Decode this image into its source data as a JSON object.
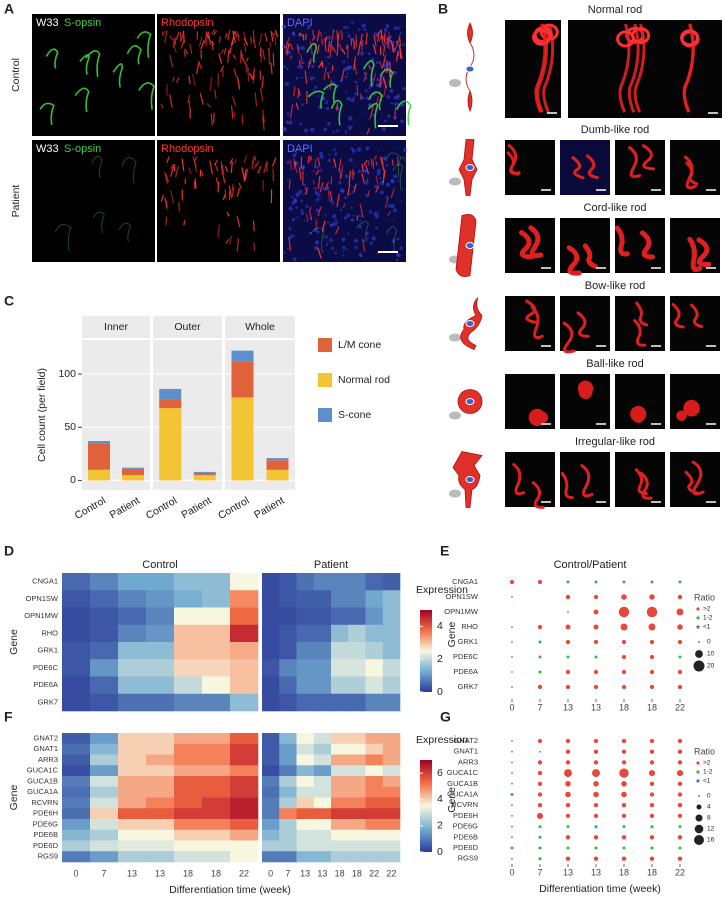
{
  "figure": {
    "panel_letters": [
      "A",
      "B",
      "C",
      "D",
      "E",
      "F",
      "G"
    ],
    "panel_a": {
      "rows": [
        "Control",
        "Patient"
      ],
      "stage": "W33",
      "channels": [
        "S-opsin",
        "Rhodopsin",
        "DAPI"
      ],
      "channel_colors": [
        "#3fd13f",
        "#ff3434",
        "#5b6bff"
      ]
    },
    "panel_b": {
      "types": [
        "Normal rod",
        "Dumb-like rod",
        "Cord-like rod",
        "Bow-like rod",
        "Ball-like rod",
        "Irregular-like rod"
      ]
    }
  },
  "chart_data": [
    {
      "type": "bar",
      "stacked": true,
      "facets": [
        "Inner",
        "Outer",
        "Whole"
      ],
      "categories": [
        "Control",
        "Patient",
        "Control",
        "Patient",
        "Control",
        "Patient"
      ],
      "ylabel": "Cell count (per field)",
      "ylim": [
        -9,
        132
      ],
      "yticks": [
        0,
        50,
        100
      ],
      "grid": true,
      "series": [
        {
          "name": "Normal rod",
          "color": "#f3c434",
          "values": [
            10,
            5,
            68,
            5,
            78,
            10
          ]
        },
        {
          "name": "L/M cone",
          "color": "#e0623a",
          "values": [
            25,
            6,
            8,
            2,
            34,
            9
          ]
        },
        {
          "name": "S-cone",
          "color": "#5d8fcc",
          "values": [
            2,
            1,
            10,
            1,
            10,
            2
          ]
        }
      ]
    },
    {
      "type": "heatmap",
      "ylabel": "Gene",
      "genes": [
        "CNGA1",
        "OPN1SW",
        "OPN1MW",
        "RHO",
        "GRK1",
        "PDE6C",
        "PDE6A",
        "GRK7"
      ],
      "colorbar_title": "Expression",
      "zlim": [
        0,
        5
      ],
      "zticks": [
        0,
        2,
        4
      ],
      "colors": [
        "#2b3a98",
        "#74add1",
        "#f7f7e0",
        "#f46d43",
        "#a50026"
      ],
      "panels": [
        {
          "title": "Control",
          "values": [
            [
              0.5,
              0.8,
              1.2,
              1.2,
              1.5,
              1.5,
              2.5
            ],
            [
              0.3,
              0.5,
              0.8,
              1,
              1.3,
              1.5,
              3.5
            ],
            [
              0.2,
              0.3,
              0.5,
              0.8,
              2.5,
              2.5,
              3.8
            ],
            [
              0.2,
              0.3,
              0.8,
              1,
              3,
              3,
              4.5
            ],
            [
              0.3,
              0.5,
              1.5,
              1.5,
              3,
              3,
              3.2
            ],
            [
              0.3,
              1,
              1.8,
              1.8,
              2.8,
              2.8,
              3
            ],
            [
              0.2,
              0.5,
              1.5,
              1.5,
              2,
              2.5,
              3
            ],
            [
              0.2,
              0.3,
              0.6,
              0.6,
              0.8,
              0.8,
              1.5
            ]
          ]
        },
        {
          "title": "Patient",
          "values": [
            [
              0.2,
              0.3,
              0.6,
              0.8,
              0.8,
              0.8,
              0.5,
              0.4
            ],
            [
              0.2,
              0.3,
              0.4,
              0.4,
              0.8,
              0.8,
              1.2,
              1.5
            ],
            [
              0.2,
              0.2,
              0.3,
              0.3,
              0.5,
              0.5,
              1,
              1.5
            ],
            [
              0.2,
              0.3,
              0.5,
              0.5,
              1.5,
              1.8,
              1.5,
              1.5
            ],
            [
              0.2,
              0.3,
              0.8,
              0.8,
              2,
              2,
              1.8,
              1.5
            ],
            [
              0.3,
              0.8,
              1,
              1,
              2.2,
              2.2,
              2.5,
              2
            ],
            [
              0.2,
              0.5,
              1,
              1,
              1.8,
              1.8,
              2.2,
              1.8
            ],
            [
              0.2,
              0.3,
              0.5,
              0.5,
              0.5,
              0.5,
              0.8,
              0.8
            ]
          ]
        }
      ]
    },
    {
      "type": "dotplot",
      "title": "Control/Patient",
      "ylabel": "Gene",
      "genes": [
        "CNGA1",
        "OPN1SW",
        "OPN1MW",
        "RHO",
        "GRK1",
        "PDE6C",
        "PDE6A",
        "GRK7"
      ],
      "x": [
        "0",
        "7",
        "13",
        "13",
        "18",
        "18",
        "22"
      ],
      "values": [
        [
          3,
          3,
          1.5,
          1.5,
          1.5,
          1.5,
          1.5
        ],
        [
          0.5,
          null,
          3,
          3,
          5,
          5,
          3
        ],
        [
          null,
          null,
          0.5,
          4,
          18,
          18,
          8
        ],
        [
          0.5,
          3,
          4,
          4,
          8,
          8,
          5
        ],
        [
          0.5,
          1.5,
          3,
          3,
          3,
          3,
          3
        ],
        [
          0.5,
          1.5,
          1.5,
          1.5,
          3,
          3,
          1.5
        ],
        [
          0.5,
          1.5,
          3,
          3,
          3,
          3,
          3
        ],
        [
          0.5,
          3,
          3,
          3,
          3,
          3,
          3
        ]
      ],
      "legend_title": "Ratio",
      "ratio_classes": [
        {
          "label": ">2",
          "min": 2,
          "color": "#e8483b"
        },
        {
          "label": "1-2",
          "min": 1,
          "color": "#3cb44b"
        },
        {
          "label": "<1",
          "min": 0,
          "color": "#4c6fd8"
        }
      ],
      "size_ticks": [
        0,
        10,
        20
      ]
    },
    {
      "type": "heatmap",
      "ylabel": "Gene",
      "xlabel": "Differentiation time (week)",
      "genes": [
        "GNAT2",
        "GNAT1",
        "ARR3",
        "GUCA1C",
        "GUCA1B",
        "GUCA1A",
        "RCVRN",
        "PDE6H",
        "PDE6G",
        "PDE6B",
        "PDE6D",
        "RGS9"
      ],
      "colorbar_title": "Expression",
      "zlim": [
        0,
        7
      ],
      "zticks": [
        0,
        2,
        4,
        6
      ],
      "colors": [
        "#2b3a98",
        "#74add1",
        "#f7f7e0",
        "#f46d43",
        "#a50026"
      ],
      "panels": [
        {
          "x": [
            "0",
            "7",
            "13",
            "13",
            "18",
            "18",
            "22"
          ],
          "values": [
            [
              0.5,
              1.5,
              4,
              4,
              4.5,
              4.5,
              5.5
            ],
            [
              0.8,
              2,
              4,
              4,
              5,
              5,
              6
            ],
            [
              0.5,
              2.5,
              4,
              4.5,
              5,
              5,
              6
            ],
            [
              0.3,
              1.5,
              4,
              4,
              4.5,
              4.5,
              5
            ],
            [
              1,
              3,
              4.5,
              4.5,
              5.5,
              5.5,
              6
            ],
            [
              0.8,
              2.5,
              4.5,
              4.5,
              5.5,
              5.5,
              6
            ],
            [
              1,
              3,
              4.5,
              5,
              5.5,
              6,
              6.5
            ],
            [
              0.8,
              4,
              5.5,
              5.5,
              6,
              6,
              6.5
            ],
            [
              1.5,
              3,
              4,
              4,
              5,
              5,
              5.5
            ],
            [
              2,
              2.5,
              3.5,
              3.5,
              4,
              4,
              4.5
            ],
            [
              2.5,
              3,
              3.2,
              3.2,
              3.5,
              3.5,
              3.5
            ],
            [
              1,
              1.5,
              2.5,
              2.5,
              3,
              3,
              3.5
            ]
          ]
        },
        {
          "x": [
            "0",
            "7",
            "13",
            "13",
            "18",
            "18",
            "22",
            "22"
          ],
          "values": [
            [
              0.5,
              2,
              3.5,
              3,
              4,
              4,
              4.5,
              4.5
            ],
            [
              0.5,
              1.5,
              3,
              2.5,
              3.5,
              3.5,
              4,
              4.5
            ],
            [
              0.5,
              1.5,
              3.5,
              3,
              4.5,
              4.5,
              5,
              4.5
            ],
            [
              0.3,
              1,
              2,
              1.5,
              3,
              3,
              3.5,
              3
            ],
            [
              1,
              2.5,
              3.5,
              3,
              4.5,
              4.5,
              5,
              4.5
            ],
            [
              0.8,
              2,
              3,
              3,
              4.5,
              4.5,
              5,
              5
            ],
            [
              1,
              2.5,
              4,
              3.5,
              5,
              5,
              5.5,
              5.5
            ],
            [
              1,
              5,
              5.5,
              5.5,
              6,
              6,
              6,
              6
            ],
            [
              1.5,
              2.5,
              3.5,
              3.5,
              4.5,
              4.5,
              5,
              5
            ],
            [
              2,
              2.5,
              3,
              3,
              3.5,
              3.5,
              3.5,
              3.5
            ],
            [
              2.5,
              2.5,
              3,
              3,
              3,
              3,
              3,
              3
            ],
            [
              1,
              1,
              2,
              2,
              2.5,
              2.5,
              2.5,
              2.5
            ]
          ]
        }
      ]
    },
    {
      "type": "dotplot",
      "ylabel": "Gene",
      "xlabel": "Differentiation time (week)",
      "genes": [
        "GNAT2",
        "GNAT1",
        "ARR3",
        "GUCA1C",
        "GUCA1B",
        "GUCA1A",
        "RCVRN",
        "PDE6H",
        "PDE6G",
        "PDE6B",
        "PDE6D",
        "RGS9"
      ],
      "x": [
        "0",
        "7",
        "13",
        "13",
        "18",
        "18",
        "22"
      ],
      "values": [
        [
          0.5,
          3,
          3,
          3,
          3,
          3,
          3
        ],
        [
          0.5,
          0.5,
          3,
          3,
          3,
          3,
          3
        ],
        [
          0.5,
          3,
          3,
          3,
          3,
          3,
          3
        ],
        [
          0.5,
          3,
          10,
          10,
          14,
          6,
          6
        ],
        [
          0.5,
          3,
          5,
          5,
          5,
          3,
          3
        ],
        [
          1.5,
          3,
          5,
          5,
          5,
          3,
          3
        ],
        [
          0.5,
          3,
          3,
          3,
          3,
          3,
          3
        ],
        [
          0.5,
          6,
          3,
          3,
          3,
          3,
          3
        ],
        [
          0.5,
          1.5,
          1.5,
          1.5,
          1.5,
          1.5,
          1.5
        ],
        [
          0.5,
          1.5,
          3,
          3,
          3,
          3,
          3
        ],
        [
          1.5,
          1.5,
          1.5,
          1.5,
          1.5,
          1.5,
          1.5
        ],
        [
          0.5,
          1.5,
          3,
          3,
          3,
          3,
          3
        ]
      ],
      "legend_title": "Ratio",
      "ratio_classes": [
        {
          "label": ">2",
          "min": 2,
          "color": "#e8483b"
        },
        {
          "label": "1-2",
          "min": 1,
          "color": "#3cb44b"
        },
        {
          "label": "<1",
          "min": 0,
          "color": "#4c6fd8"
        }
      ],
      "size_ticks": [
        0,
        4,
        8,
        12,
        16
      ]
    }
  ]
}
